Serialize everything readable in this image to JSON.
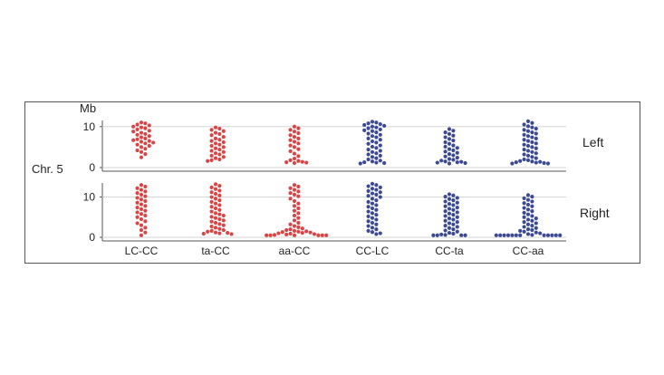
{
  "chart_data": {
    "type": "scatter",
    "subtype": "beeswarm",
    "chromosome_label": "Chr. 5",
    "unit_label": "Mb",
    "categories": [
      "LC-CC",
      "ta-CC",
      "aa-CC",
      "CC-LC",
      "CC-ta",
      "CC-aa"
    ],
    "category_colors": [
      "#d94545",
      "#d94545",
      "#d94545",
      "#3c4a94",
      "#3c4a94",
      "#3c4a94"
    ],
    "y_ticks": [
      0,
      10
    ],
    "ylim": [
      0,
      11.5
    ],
    "grid": true,
    "panels": [
      {
        "name": "Left",
        "ylim": [
          0,
          11.5
        ],
        "y_ticks": [
          0,
          10
        ],
        "groups": [
          {
            "category": "LC-CC",
            "values": [
              11.0,
              10.8,
              10.5,
              10.3,
              10.0,
              9.8,
              9.6,
              9.3,
              9.0,
              8.8,
              8.5,
              8.2,
              8.0,
              7.7,
              7.4,
              7.1,
              6.9,
              6.7,
              6.5,
              6.3,
              6.1,
              5.9,
              5.6,
              5.3,
              5.0,
              4.6,
              4.2,
              3.8,
              3.3,
              2.5
            ]
          },
          {
            "category": "ta-CC",
            "values": [
              9.8,
              9.5,
              9.2,
              8.9,
              8.5,
              8.2,
              7.9,
              7.5,
              7.1,
              6.8,
              6.5,
              6.2,
              5.9,
              5.6,
              5.3,
              5.0,
              4.7,
              4.4,
              4.1,
              3.8,
              3.5,
              3.2,
              2.9,
              2.6,
              2.3,
              2.0,
              1.8,
              1.6
            ]
          },
          {
            "category": "aa-CC",
            "values": [
              10.0,
              9.6,
              9.2,
              8.8,
              8.4,
              7.9,
              7.5,
              7.1,
              6.7,
              6.3,
              5.9,
              5.4,
              5.0,
              4.5,
              4.0,
              3.4,
              2.8,
              2.2,
              1.8,
              1.6,
              1.4,
              1.3,
              1.2,
              1.1
            ]
          },
          {
            "category": "CC-LC",
            "values": [
              11.2,
              11.0,
              10.8,
              10.6,
              10.4,
              10.2,
              10.0,
              9.8,
              9.6,
              9.3,
              9.1,
              8.9,
              8.6,
              8.3,
              8.0,
              7.7,
              7.4,
              7.1,
              6.8,
              6.4,
              6.1,
              5.8,
              5.4,
              5.1,
              4.8,
              4.4,
              4.1,
              3.8,
              3.5,
              3.2,
              2.9,
              2.6,
              2.3,
              2.0,
              1.7,
              1.5,
              1.3,
              1.2,
              1.1,
              1.0
            ]
          },
          {
            "category": "CC-ta",
            "values": [
              9.4,
              9.0,
              8.6,
              8.2,
              7.8,
              7.4,
              7.0,
              6.6,
              6.2,
              5.8,
              5.4,
              5.1,
              4.8,
              4.5,
              4.2,
              3.9,
              3.6,
              3.3,
              3.0,
              2.7,
              2.4,
              2.1,
              1.9,
              1.7,
              1.5,
              1.4,
              1.3,
              1.2,
              1.1,
              1.0
            ]
          },
          {
            "category": "CC-aa",
            "values": [
              11.3,
              10.9,
              10.5,
              10.1,
              9.8,
              9.5,
              9.2,
              8.9,
              8.6,
              8.3,
              8.0,
              7.7,
              7.4,
              7.1,
              6.8,
              6.5,
              6.2,
              5.9,
              5.6,
              5.3,
              5.0,
              4.7,
              4.4,
              4.1,
              3.8,
              3.5,
              3.2,
              2.9,
              2.6,
              2.3,
              2.0,
              1.8,
              1.6,
              1.5,
              1.4,
              1.3,
              1.2,
              1.1,
              1.0,
              1.0
            ]
          }
        ]
      },
      {
        "name": "Right",
        "ylim": [
          0,
          13.5
        ],
        "y_ticks": [
          0,
          10
        ],
        "groups": [
          {
            "category": "LC-CC",
            "values": [
              13.0,
              12.6,
              12.2,
              11.8,
              11.4,
              11.0,
              10.6,
              10.2,
              9.8,
              9.4,
              9.0,
              8.6,
              8.2,
              7.8,
              7.4,
              7.0,
              6.6,
              6.2,
              5.8,
              5.4,
              5.0,
              4.5,
              4.0,
              3.5,
              3.0,
              2.4,
              1.8,
              1.2,
              0.5
            ]
          },
          {
            "category": "ta-CC",
            "values": [
              13.2,
              12.8,
              12.4,
              12.0,
              11.6,
              11.2,
              10.8,
              10.4,
              10.0,
              9.6,
              9.2,
              8.8,
              8.4,
              8.0,
              7.6,
              7.2,
              6.8,
              6.4,
              6.0,
              5.7,
              5.4,
              5.1,
              4.8,
              4.5,
              4.2,
              3.9,
              3.6,
              3.3,
              3.0,
              2.7,
              2.4,
              2.1,
              1.8,
              1.6,
              1.4,
              1.2,
              1.1,
              1.0,
              0.9,
              0.8
            ]
          },
          {
            "category": "aa-CC",
            "values": [
              13.0,
              12.6,
              12.2,
              11.8,
              11.4,
              11.0,
              10.6,
              10.2,
              9.6,
              9.0,
              8.4,
              7.8,
              7.2,
              6.6,
              6.0,
              5.4,
              4.8,
              4.2,
              3.6,
              3.2,
              2.8,
              2.5,
              2.2,
              2.0,
              1.8,
              1.6,
              1.5,
              1.4,
              1.3,
              1.2,
              1.1,
              1.0,
              0.9,
              0.8,
              0.7,
              0.6,
              0.5,
              0.5,
              0.5,
              0.5,
              0.5,
              0.5
            ]
          },
          {
            "category": "CC-LC",
            "values": [
              13.3,
              13.0,
              12.7,
              12.4,
              12.1,
              11.8,
              11.5,
              11.2,
              10.9,
              10.6,
              10.3,
              10.0,
              9.6,
              9.2,
              8.8,
              8.4,
              8.0,
              7.6,
              7.2,
              6.8,
              6.4,
              6.0,
              5.6,
              5.2,
              4.8,
              4.4,
              4.0,
              3.6,
              3.2,
              2.8,
              2.4,
              2.0,
              1.6,
              1.3,
              1.0,
              0.8
            ]
          },
          {
            "category": "CC-ta",
            "values": [
              10.7,
              10.4,
              10.1,
              9.8,
              9.5,
              9.2,
              8.9,
              8.6,
              8.3,
              8.0,
              7.7,
              7.4,
              7.1,
              6.8,
              6.5,
              6.2,
              5.9,
              5.6,
              5.3,
              5.0,
              4.7,
              4.4,
              4.1,
              3.8,
              3.5,
              3.2,
              2.9,
              2.6,
              2.3,
              2.0,
              1.7,
              1.4,
              1.1,
              0.9,
              0.7,
              0.6,
              0.5,
              0.5,
              0.5,
              0.5
            ]
          },
          {
            "category": "CC-aa",
            "values": [
              10.5,
              10.1,
              9.7,
              9.3,
              8.9,
              8.5,
              8.1,
              7.7,
              7.3,
              6.9,
              6.5,
              6.1,
              5.7,
              5.3,
              5.0,
              4.7,
              4.4,
              4.1,
              3.8,
              3.5,
              3.2,
              2.9,
              2.6,
              2.3,
              2.0,
              1.8,
              1.6,
              1.4,
              1.2,
              1.0,
              0.8,
              0.6,
              0.5,
              0.5,
              0.5,
              0.5,
              0.5,
              0.5,
              0.5,
              0.5,
              0.5,
              0.5,
              0.5,
              0.5
            ]
          }
        ]
      }
    ]
  }
}
